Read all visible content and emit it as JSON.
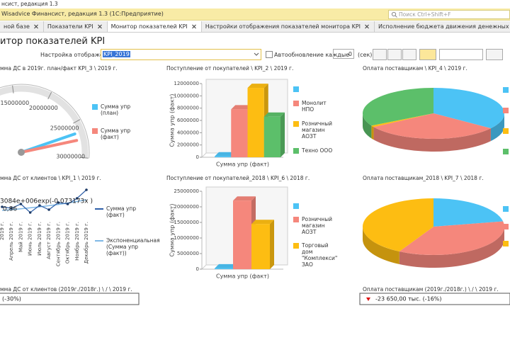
{
  "window": {
    "title": "нсист, редакция 1.3"
  },
  "app_bar": {
    "title": "Wisadvice Финансист, редакция 1.3  (1С:Предприятие)",
    "search_placeholder": "Поиск Ctrl+Shift+F"
  },
  "tabs": [
    {
      "label": "ной базе"
    },
    {
      "label": "Показатели KPI"
    },
    {
      "label": "Монитор показателей KPI",
      "active": true
    },
    {
      "label": "Настройки отображения показателей монитора KPI"
    },
    {
      "label": "Исполнение бюджета движения денежных средств (Основной)"
    }
  ],
  "toolbar": {
    "title": "итор показателей KPI",
    "settings_label": "Настройка отображения:",
    "settings_value": "KPI_2019",
    "autorefresh_label": "Автообновление каждые",
    "autorefresh_value": 0,
    "seconds_label": "(сек)"
  },
  "panels": [
    {
      "title": "мма ДС в 2019г. план/факт KPI_3 \\ 2019 г.",
      "chart": {
        "type": "gauge",
        "lim": [
          0,
          30000000
        ],
        "ticks": [
          15000000,
          20000000,
          25000000,
          30000000
        ],
        "series": [
          {
            "name": "Сумма упр (план)",
            "color": "#4cc3f5",
            "value": 26500000
          },
          {
            "name": "Сумма упр (факт)",
            "color": "#f5877c",
            "value": 27500000
          }
        ]
      }
    },
    {
      "title": "Поступление от покупателей \\ KPI_2 \\ 2019 г.",
      "chart": {
        "type": "bar",
        "x_label": "Сумма упр (факт)",
        "y_label": "Сумма упр (факт)",
        "ylim": [
          0,
          12000000
        ],
        "yticks": [
          0,
          2000000,
          4000000,
          6000000,
          8000000,
          10000000,
          12000000
        ],
        "series": [
          {
            "name": null,
            "color": "#4cc3f5",
            "values": [
              150000
            ]
          },
          {
            "name": "Монолит НПО",
            "color": "#f5877c",
            "values": [
              7800000
            ]
          },
          {
            "name": "Розничный магазин АОЗТ",
            "color": "#fdbd12",
            "values": [
              11300000
            ]
          },
          {
            "name": "Техно ООО",
            "color": "#5cbf6a",
            "values": [
              6600000
            ]
          }
        ]
      }
    },
    {
      "title": "Оплата поставщикам \\ KPI_4 \\ 2019 г.",
      "chart": {
        "type": "pie",
        "values": [
          35,
          31,
          1,
          33
        ],
        "colors": [
          "#4cc3f5",
          "#f5877c",
          "#fdbd12",
          "#5cbf6a"
        ]
      }
    },
    {
      "title": "мма ДС от клиентов \\ KPI_1 \\ 2019 г.",
      "chart": {
        "type": "line",
        "categories": [
          "2019 г.",
          "Апрель 2019 г.",
          "Май 2019 г.",
          "Июнь 2019 г.",
          "Июль 2019 г.",
          "Август 2019 г.",
          "Сентябрь 2019 г.",
          "Октябрь 2019 г.",
          "Ноябрь 2019 г.",
          "Декабрь 2019 г."
        ],
        "equation": "3084e+006exp(-0,073173x )",
        "r_squared": "0,86",
        "series": [
          {
            "name": "Сумма упр (факт)",
            "color": "#2e5fa8",
            "values": [
              3.1,
              3.0,
              3.3,
              2.7,
              3.2,
              2.9,
              3.4,
              3.3,
              3.7,
              4.3
            ]
          },
          {
            "name": "Экспоненциальная (Сумма упр (факт))",
            "color": "#7fb8e6",
            "values": [
              2.85,
              2.9,
              2.96,
              3.03,
              3.1,
              3.18,
              3.27,
              3.37,
              3.48,
              3.6
            ]
          }
        ]
      }
    },
    {
      "title": "Поступление от покупателей_2018 \\ KPI_6 \\ 2018 г.",
      "chart": {
        "type": "bar",
        "x_label": "Сумма упр (факт)",
        "y_label": "Сумма упр (факт)",
        "ylim": [
          0,
          25000000
        ],
        "yticks": [
          0,
          5000000,
          10000000,
          15000000,
          20000000,
          25000000
        ],
        "series": [
          {
            "name": null,
            "color": "#4cc3f5",
            "values": [
              250000
            ]
          },
          {
            "name": "Розничный магазин АОЗТ",
            "color": "#f5877c",
            "values": [
              22000000
            ]
          },
          {
            "name": "Торговый дом \"Комплекси\" ЗАО",
            "color": "#fdbd12",
            "values": [
              14500000
            ]
          }
        ]
      }
    },
    {
      "title": "Оплата поставщикам_2018 \\ KPI_7 \\ 2018 г.",
      "chart": {
        "type": "pie",
        "values": [
          22,
          36,
          42
        ],
        "colors": [
          "#4cc3f5",
          "#f5877c",
          "#fdbd12"
        ]
      }
    }
  ],
  "cards": [
    {
      "title": "мма ДС от клиентов (2019г./2018г.) \\ / \\ 2019 г.",
      "value": "(-30%)"
    },
    {
      "title": "Оплата поставщикам (2019г./2018г.) \\ / \\ 2019 г.",
      "value": "-23 650,00 тыс. (-16%)",
      "trend": "down"
    }
  ]
}
